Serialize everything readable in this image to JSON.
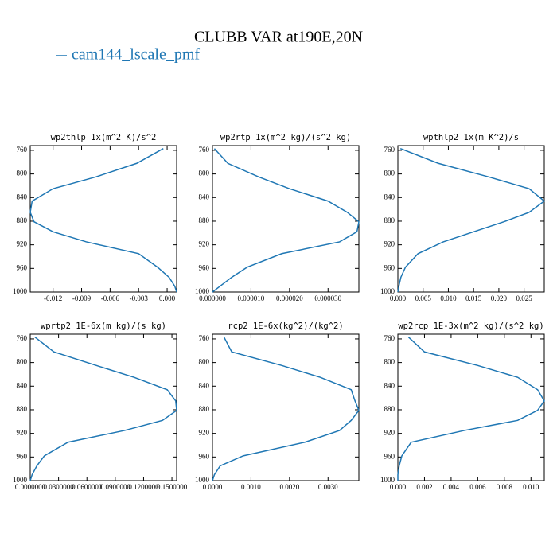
{
  "title": "CLUBB VAR at190E,20N",
  "legend": [
    {
      "name": "cam144_lscale_pmf",
      "color": "#1f77b4"
    }
  ],
  "chart_data": [
    {
      "type": "line",
      "title": "wp2thlp  1x(m^2 K)/s^2",
      "y": [
        757,
        782,
        805,
        825,
        846,
        865,
        881,
        898,
        915,
        935,
        958,
        975,
        990,
        1000
      ],
      "series": [
        {
          "color": "#1f77b4",
          "values": [
            -0.0004,
            -0.0032,
            -0.0075,
            -0.012,
            -0.0142,
            -0.0144,
            -0.014,
            -0.012,
            -0.0085,
            -0.003,
            -0.001,
            0.0002,
            0.0008,
            0.001
          ]
        }
      ],
      "xlim": [
        -0.0144,
        0.001
      ],
      "xticks": [
        {
          "value": -0.012,
          "label": "-0.012"
        },
        {
          "value": -0.009,
          "label": "-0.009"
        },
        {
          "value": -0.006,
          "label": "-0.006"
        },
        {
          "value": -0.003,
          "label": "-0.003"
        },
        {
          "value": 0,
          "label": "0.000"
        }
      ],
      "ylim": [
        1000,
        752
      ],
      "yticks": [
        760,
        800,
        840,
        880,
        920,
        960,
        1000
      ]
    },
    {
      "type": "line",
      "title": "wp2rtp  1x(m^2 kg)/(s^2 kg)",
      "y": [
        757,
        782,
        805,
        825,
        846,
        865,
        881,
        898,
        915,
        935,
        958,
        975,
        990,
        1000
      ],
      "series": [
        {
          "color": "#1f77b4",
          "values": [
            5e-07,
            4e-06,
            1.2e-05,
            2e-05,
            3e-05,
            3.5e-05,
            3.8e-05,
            3.75e-05,
            3.3e-05,
            1.8e-05,
            9e-06,
            5e-06,
            2e-06,
            0
          ]
        }
      ],
      "xlim": [
        0,
        3.8e-05
      ],
      "xticks": [
        {
          "value": 0,
          "label": "0.000000"
        },
        {
          "value": 1e-05,
          "label": "0.000010"
        },
        {
          "value": 2e-05,
          "label": "0.000020"
        },
        {
          "value": 3e-05,
          "label": "0.000030"
        }
      ],
      "ylim": [
        1000,
        752
      ],
      "yticks": [
        760,
        800,
        840,
        880,
        920,
        960,
        1000
      ]
    },
    {
      "type": "line",
      "title": "wpthlp2  1x(m K^2)/s",
      "y": [
        757,
        782,
        805,
        825,
        846,
        865,
        881,
        898,
        915,
        935,
        958,
        975,
        990,
        1000
      ],
      "series": [
        {
          "color": "#1f77b4",
          "values": [
            0.0005,
            0.008,
            0.018,
            0.026,
            0.029,
            0.026,
            0.021,
            0.015,
            0.009,
            0.004,
            0.0015,
            0.0006,
            0.0002,
            0
          ]
        }
      ],
      "xlim": [
        0,
        0.029
      ],
      "xticks": [
        {
          "value": 0,
          "label": "0.000"
        },
        {
          "value": 0.005,
          "label": "0.005"
        },
        {
          "value": 0.01,
          "label": "0.010"
        },
        {
          "value": 0.015,
          "label": "0.015"
        },
        {
          "value": 0.02,
          "label": "0.020"
        },
        {
          "value": 0.025,
          "label": "0.025"
        }
      ],
      "ylim": [
        1000,
        752
      ],
      "yticks": [
        760,
        800,
        840,
        880,
        920,
        960,
        1000
      ]
    },
    {
      "type": "line",
      "title": "wprtp2  1E-6x(m kg)/(s kg)",
      "y": [
        757,
        782,
        805,
        825,
        846,
        865,
        881,
        898,
        915,
        935,
        958,
        975,
        990,
        1000
      ],
      "series": [
        {
          "color": "#1f77b4",
          "values": [
            0.005,
            0.025,
            0.07,
            0.11,
            0.145,
            0.154,
            0.155,
            0.14,
            0.1,
            0.04,
            0.015,
            0.007,
            0.002,
            0
          ]
        }
      ],
      "xlim": [
        0,
        0.155
      ],
      "xticks": [
        {
          "value": 0,
          "label": "0.0000000"
        },
        {
          "value": 0.03,
          "label": "0.0300000"
        },
        {
          "value": 0.06,
          "label": "0.0600000"
        },
        {
          "value": 0.09,
          "label": "0.0900000"
        },
        {
          "value": 0.12,
          "label": "0.1200000"
        },
        {
          "value": 0.15,
          "label": "0.1500000"
        }
      ],
      "ylim": [
        1000,
        752
      ],
      "yticks": [
        760,
        800,
        840,
        880,
        920,
        960,
        1000
      ]
    },
    {
      "type": "line",
      "title": "rcp2  1E-6x(kg^2)/(kg^2)",
      "y": [
        757,
        782,
        805,
        825,
        846,
        865,
        881,
        898,
        915,
        935,
        958,
        975,
        990,
        1000
      ],
      "series": [
        {
          "color": "#1f77b4",
          "values": [
            0.0003,
            0.0005,
            0.0018,
            0.0028,
            0.0036,
            0.0037,
            0.0038,
            0.0036,
            0.0033,
            0.0024,
            0.0008,
            0.0002,
            5e-05,
            0
          ]
        }
      ],
      "xlim": [
        0,
        0.0038
      ],
      "xticks": [
        {
          "value": 0,
          "label": "0.0000"
        },
        {
          "value": 0.001,
          "label": "0.0010"
        },
        {
          "value": 0.002,
          "label": "0.0020"
        },
        {
          "value": 0.003,
          "label": "0.0030"
        }
      ],
      "ylim": [
        1000,
        752
      ],
      "yticks": [
        760,
        800,
        840,
        880,
        920,
        960,
        1000
      ]
    },
    {
      "type": "line",
      "title": "wp2rcp  1E-3x(m^2 kg)/(s^2 kg)",
      "y": [
        757,
        782,
        805,
        825,
        846,
        865,
        881,
        898,
        915,
        935,
        958,
        975,
        990,
        1000
      ],
      "series": [
        {
          "color": "#1f77b4",
          "values": [
            0.0008,
            0.002,
            0.006,
            0.009,
            0.0105,
            0.011,
            0.0105,
            0.009,
            0.005,
            0.001,
            0.0003,
            0.0001,
            0,
            0
          ]
        }
      ],
      "xlim": [
        0,
        0.011
      ],
      "xticks": [
        {
          "value": 0,
          "label": "0.000"
        },
        {
          "value": 0.002,
          "label": "0.002"
        },
        {
          "value": 0.004,
          "label": "0.004"
        },
        {
          "value": 0.006,
          "label": "0.006"
        },
        {
          "value": 0.008,
          "label": "0.008"
        },
        {
          "value": 0.01,
          "label": "0.010"
        }
      ],
      "ylim": [
        1000,
        752
      ],
      "yticks": [
        760,
        800,
        840,
        880,
        920,
        960,
        1000
      ]
    }
  ]
}
